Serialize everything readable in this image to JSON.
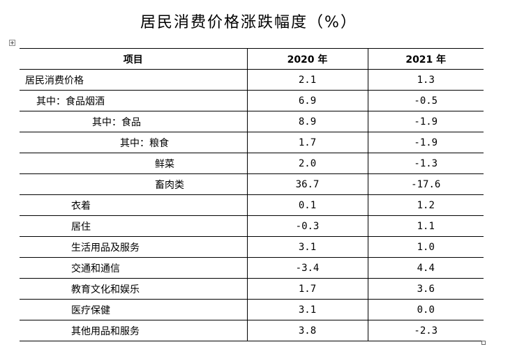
{
  "title": "居民消费价格涨跌幅度（%）",
  "table": {
    "headers": [
      "项目",
      "2020 年",
      "2021 年"
    ],
    "rows": [
      {
        "label": "居民消费价格",
        "indent": 0,
        "v2020": "2.1",
        "v2021": "1.3"
      },
      {
        "label": "其中：食品烟酒",
        "indent": 1,
        "v2020": "6.9",
        "v2021": "-0.5"
      },
      {
        "label": "其中：食品",
        "indent": 2,
        "v2020": "8.9",
        "v2021": "-1.9"
      },
      {
        "label": "其中：粮食",
        "indent": 3,
        "v2020": "1.7",
        "v2021": "-1.9"
      },
      {
        "label": "鲜菜",
        "indent": 4,
        "v2020": "2.0",
        "v2021": "-1.3"
      },
      {
        "label": "畜肉类",
        "indent": 4,
        "v2020": "36.7",
        "v2021": "-17.6"
      },
      {
        "label": "衣着",
        "indent": 5,
        "v2020": "0.1",
        "v2021": "1.2"
      },
      {
        "label": "居住",
        "indent": 5,
        "v2020": "-0.3",
        "v2021": "1.1"
      },
      {
        "label": "生活用品及服务",
        "indent": 5,
        "v2020": "3.1",
        "v2021": "1.0"
      },
      {
        "label": "交通和通信",
        "indent": 5,
        "v2020": "-3.4",
        "v2021": "4.4"
      },
      {
        "label": "教育文化和娱乐",
        "indent": 5,
        "v2020": "1.7",
        "v2021": "3.6"
      },
      {
        "label": "医疗保健",
        "indent": 5,
        "v2020": "3.1",
        "v2021": "0.0"
      },
      {
        "label": "其他用品和服务",
        "indent": 5,
        "v2020": "3.8",
        "v2021": "-2.3"
      }
    ]
  }
}
